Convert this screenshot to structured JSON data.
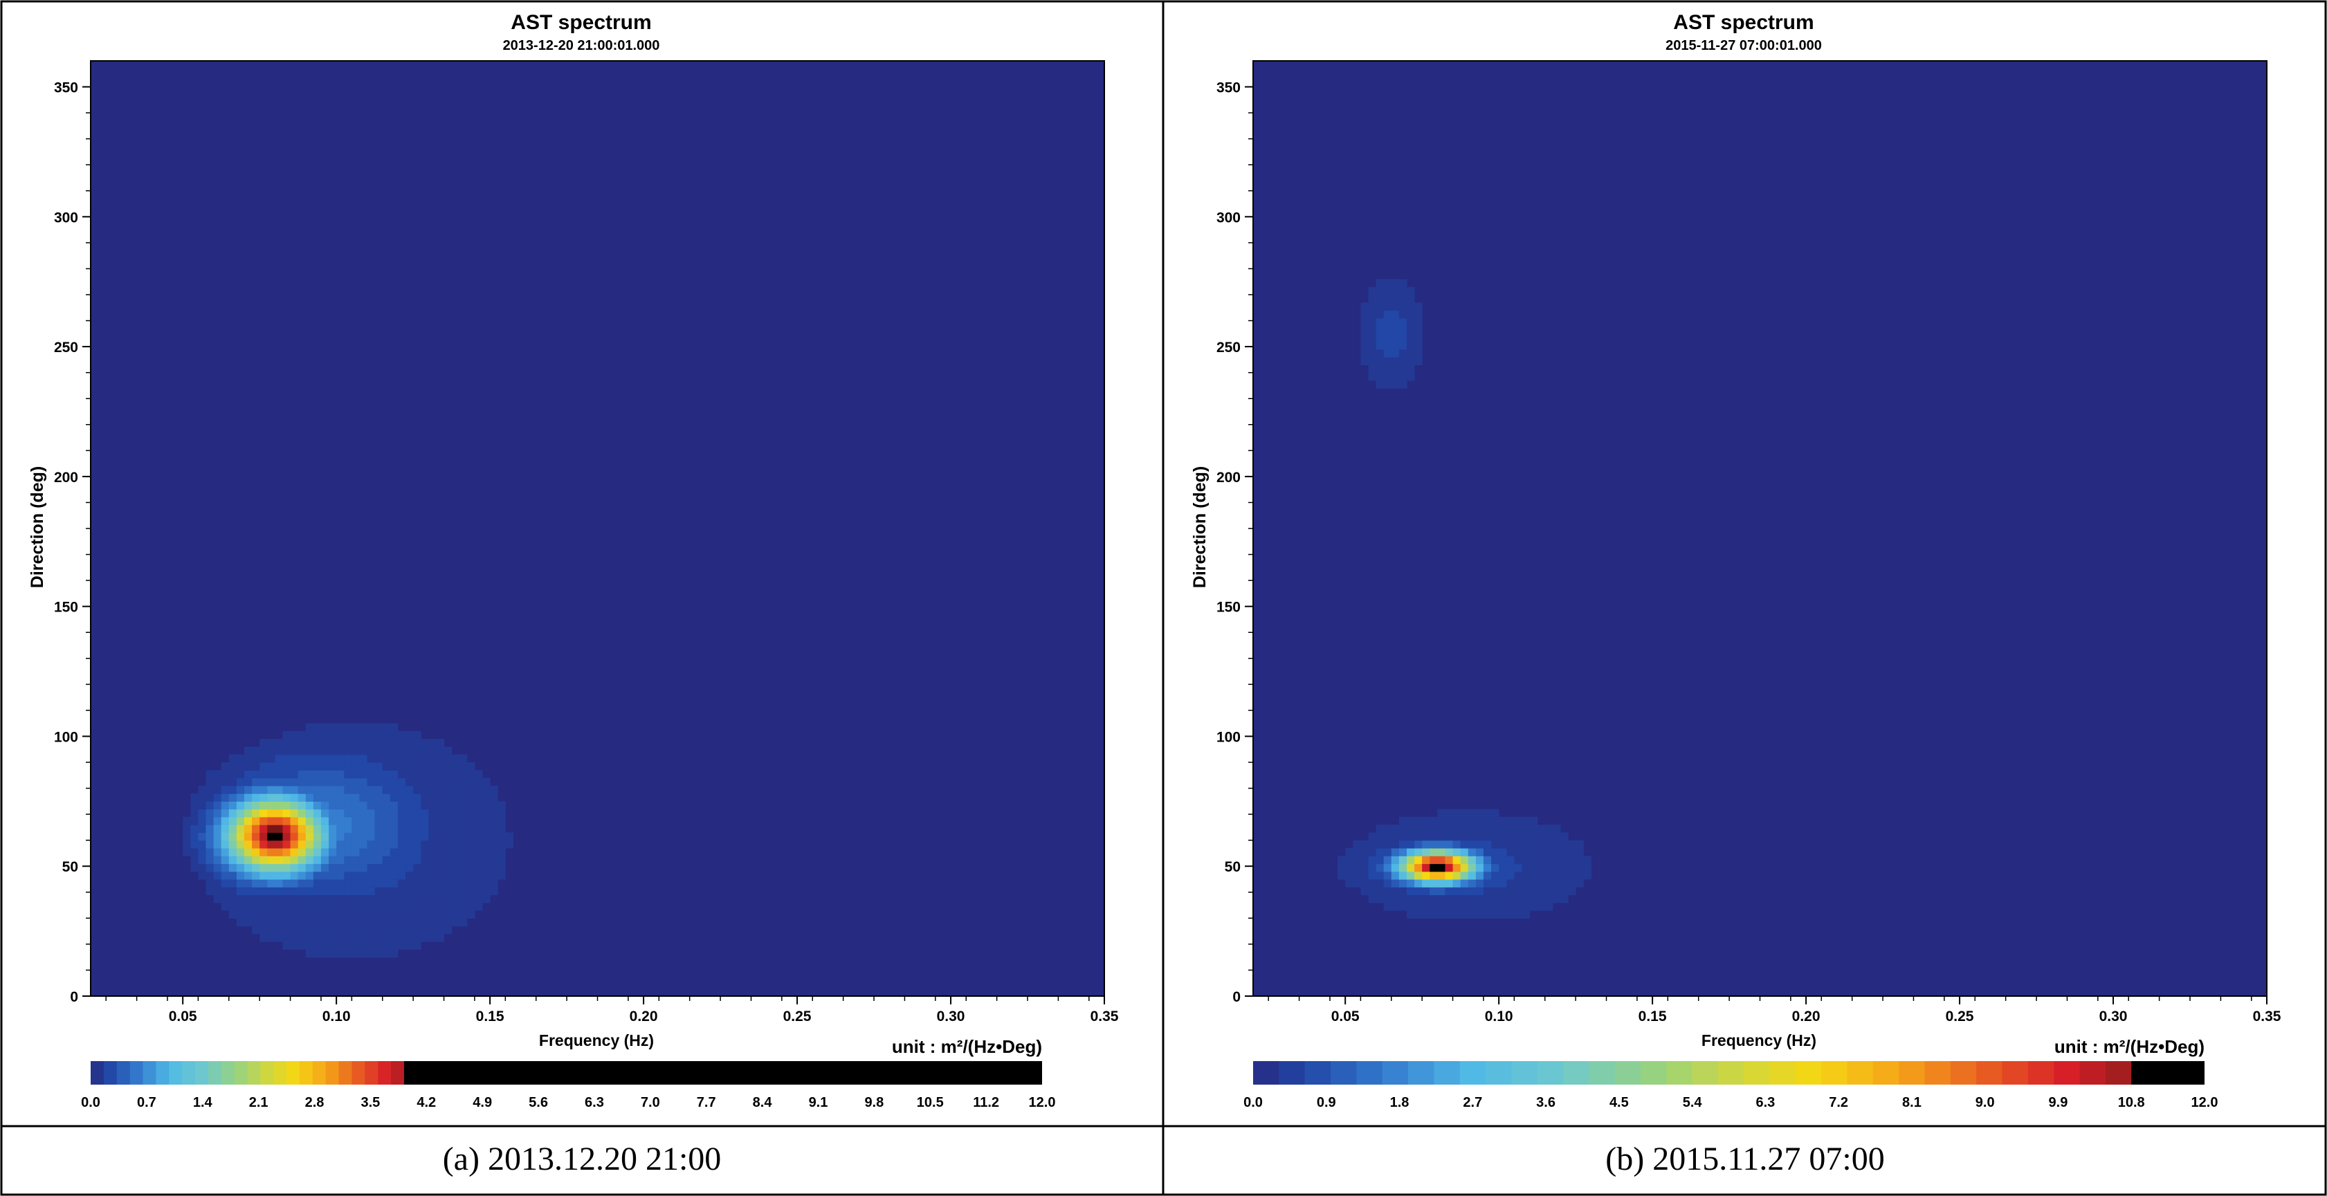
{
  "panels": [
    {
      "title": "AST spectrum",
      "subtitle": "2013-12-20 21:00:01.000",
      "caption": "(a)  2013.12.20  21:00",
      "unit_label": "unit : m²/(Hz•Deg)",
      "colorbar_ticks": [
        "0.0",
        "0.7",
        "1.4",
        "2.1",
        "2.8",
        "3.5",
        "4.2",
        "4.9",
        "5.6",
        "6.3",
        "7.0",
        "7.7",
        "8.4",
        "9.1",
        "9.8",
        "10.5",
        "11.2",
        "12.0"
      ]
    },
    {
      "title": "AST spectrum",
      "subtitle": "2015-11-27 07:00:01.000",
      "caption": "(b)  2015.11.27  07:00",
      "unit_label": "unit : m²/(Hz•Deg)",
      "colorbar_ticks": [
        "0.0",
        "0.9",
        "1.8",
        "2.7",
        "3.6",
        "4.5",
        "5.4",
        "6.3",
        "7.2",
        "8.1",
        "9.0",
        "9.9",
        "10.8",
        "12.0"
      ]
    }
  ],
  "chart_data": [
    {
      "type": "heatmap",
      "title": "AST spectrum",
      "subtitle": "2013-12-20 21:00:01.000",
      "xlabel": "Frequency (Hz)",
      "ylabel": "Direction (deg)",
      "xlim": [
        0.02,
        0.35
      ],
      "ylim": [
        0,
        360
      ],
      "xticks": [
        "0.05",
        "0.10",
        "0.15",
        "0.20",
        "0.25",
        "0.30",
        "0.35"
      ],
      "yticks": [
        "0",
        "50",
        "100",
        "150",
        "200",
        "250",
        "300",
        "350"
      ],
      "colorbar_range": [
        0,
        12
      ],
      "colorbar_ticks": [
        "0.0",
        "0.7",
        "1.4",
        "2.1",
        "2.8",
        "3.5",
        "4.2",
        "4.9",
        "5.6",
        "6.3",
        "7.0",
        "7.7",
        "8.4",
        "9.1",
        "9.8",
        "10.5",
        "11.2",
        "12.0"
      ],
      "peaks": [
        {
          "frequency": 0.08,
          "direction": 62,
          "value": 12.0
        },
        {
          "frequency": 0.1,
          "direction": 70,
          "value": 1.2
        }
      ],
      "background_value": 0.0
    },
    {
      "type": "heatmap",
      "title": "AST spectrum",
      "subtitle": "2015-11-27 07:00:01.000",
      "xlabel": "Frequency (Hz)",
      "ylabel": "Direction (deg)",
      "xlim": [
        0.02,
        0.35
      ],
      "ylim": [
        0,
        360
      ],
      "xticks": [
        "0.05",
        "0.10",
        "0.15",
        "0.20",
        "0.25",
        "0.30",
        "0.35"
      ],
      "yticks": [
        "0",
        "50",
        "100",
        "150",
        "200",
        "250",
        "300",
        "350"
      ],
      "colorbar_range": [
        0,
        12
      ],
      "colorbar_ticks": [
        "0.0",
        "0.9",
        "1.8",
        "2.7",
        "3.6",
        "4.5",
        "5.4",
        "6.3",
        "7.2",
        "8.1",
        "9.0",
        "9.9",
        "10.8",
        "12.0"
      ],
      "peaks": [
        {
          "frequency": 0.08,
          "direction": 50,
          "value": 12.0
        },
        {
          "frequency": 0.065,
          "direction": 255,
          "value": 0.6
        }
      ],
      "background_value": 0.0
    }
  ]
}
